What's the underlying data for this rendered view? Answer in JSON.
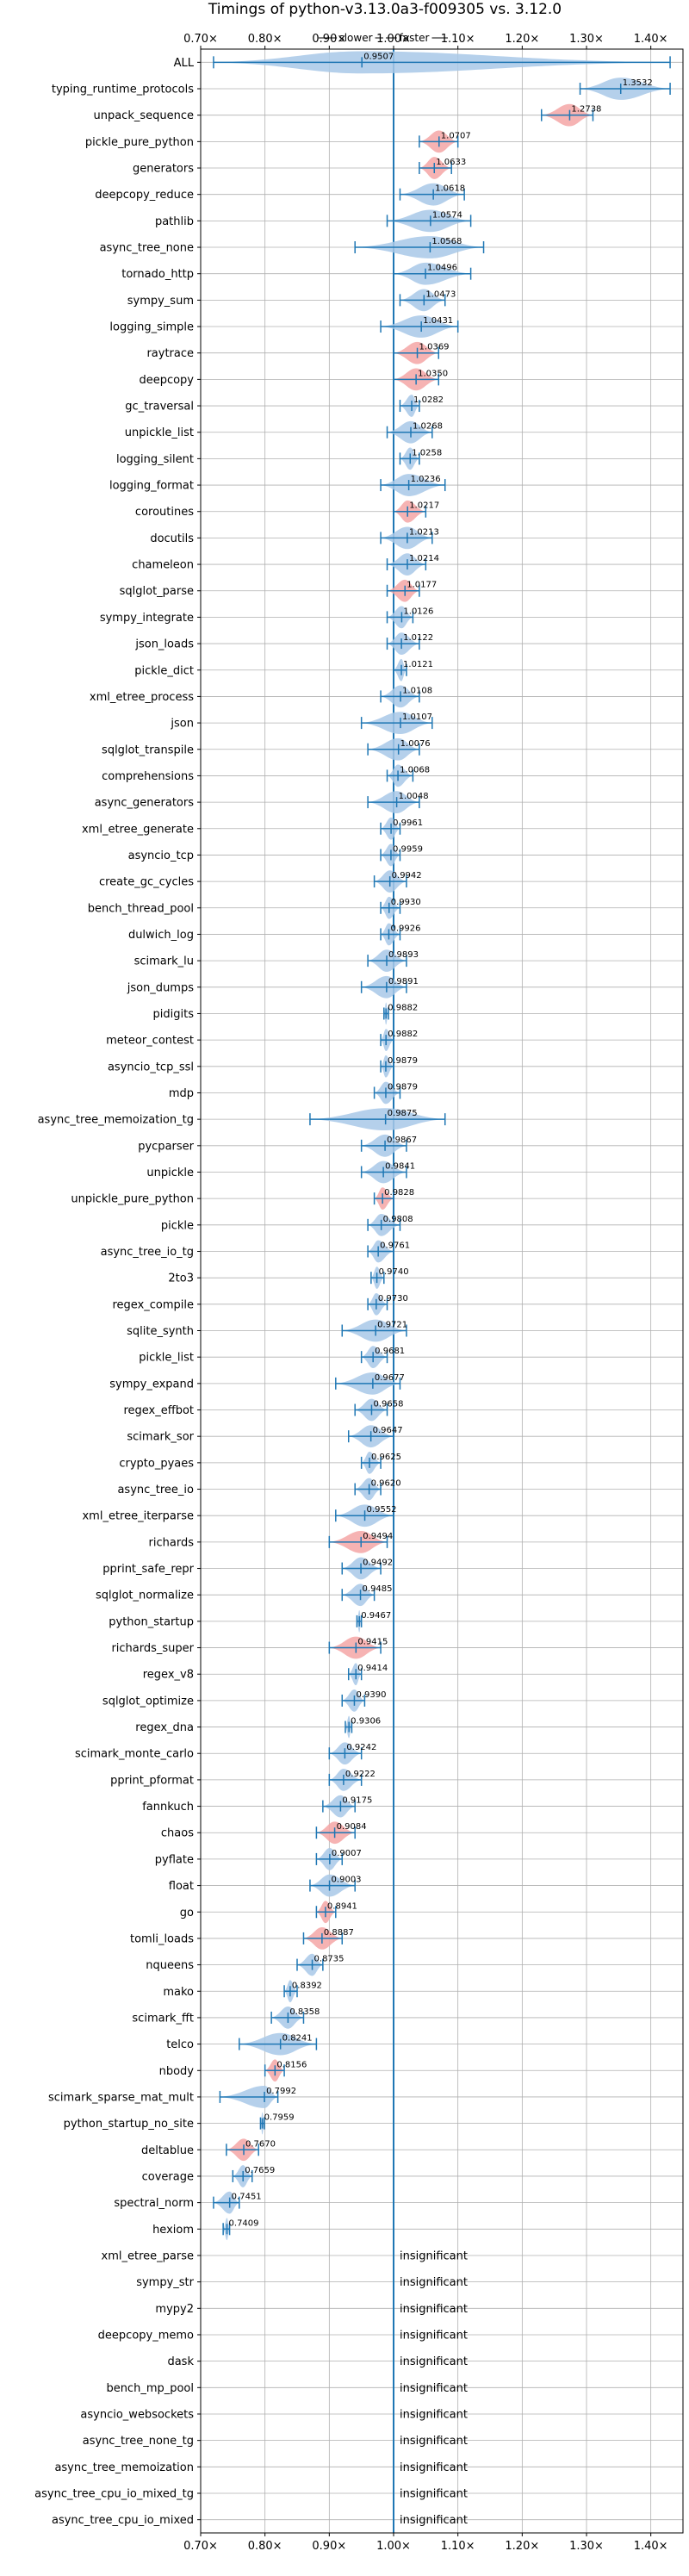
{
  "chart_data": {
    "type": "violin",
    "title": "Timings of python-v3.13.0a3-f009305 vs. 3.12.0",
    "hint_slower": "slower",
    "hint_faster": "faster",
    "xlim": [
      0.7,
      1.45
    ],
    "x_ticks": [
      0.7,
      0.8,
      0.9,
      1.0,
      1.1,
      1.2,
      1.3,
      1.4
    ],
    "x_tick_labels": [
      "0.70×",
      "0.80×",
      "0.90×",
      "1.00×",
      "1.10×",
      "1.20×",
      "1.30×",
      "1.40×"
    ],
    "grid": true,
    "colors": {
      "faster": "#a8c8e8",
      "slower": "#f4a6a6",
      "line": "#1f77b4"
    },
    "insignificant_label": "insignificant",
    "benchmarks": [
      {
        "name": "ALL",
        "value": 0.9507,
        "label": "0.9507",
        "min": 0.72,
        "max": 1.43,
        "slower": false
      },
      {
        "name": "typing_runtime_protocols",
        "value": 1.3532,
        "label": "1.3532",
        "min": 1.29,
        "max": 1.43,
        "slower": false
      },
      {
        "name": "unpack_sequence",
        "value": 1.2738,
        "label": "1.2738",
        "min": 1.23,
        "max": 1.31,
        "slower": true
      },
      {
        "name": "pickle_pure_python",
        "value": 1.0707,
        "label": "1.0707",
        "min": 1.04,
        "max": 1.1,
        "slower": true
      },
      {
        "name": "generators",
        "value": 1.0633,
        "label": "1.0633",
        "min": 1.04,
        "max": 1.09,
        "slower": true
      },
      {
        "name": "deepcopy_reduce",
        "value": 1.0618,
        "label": "1.0618",
        "min": 1.01,
        "max": 1.11,
        "slower": false
      },
      {
        "name": "pathlib",
        "value": 1.0574,
        "label": "1.0574",
        "min": 0.99,
        "max": 1.12,
        "slower": false
      },
      {
        "name": "async_tree_none",
        "value": 1.0568,
        "label": "1.0568",
        "min": 0.94,
        "max": 1.14,
        "slower": false
      },
      {
        "name": "tornado_http",
        "value": 1.0496,
        "label": "1.0496",
        "min": 1.0,
        "max": 1.12,
        "slower": false
      },
      {
        "name": "sympy_sum",
        "value": 1.0473,
        "label": "1.0473",
        "min": 1.01,
        "max": 1.08,
        "slower": false
      },
      {
        "name": "logging_simple",
        "value": 1.0431,
        "label": "1.0431",
        "min": 0.98,
        "max": 1.1,
        "slower": false
      },
      {
        "name": "raytrace",
        "value": 1.0369,
        "label": "1.0369",
        "min": 1.0,
        "max": 1.07,
        "slower": true
      },
      {
        "name": "deepcopy",
        "value": 1.035,
        "label": "1.0350",
        "min": 1.0,
        "max": 1.07,
        "slower": true
      },
      {
        "name": "gc_traversal",
        "value": 1.0282,
        "label": "1.0282",
        "min": 1.01,
        "max": 1.04,
        "slower": false
      },
      {
        "name": "unpickle_list",
        "value": 1.0268,
        "label": "1.0268",
        "min": 0.99,
        "max": 1.06,
        "slower": false
      },
      {
        "name": "logging_silent",
        "value": 1.0258,
        "label": "1.0258",
        "min": 1.01,
        "max": 1.04,
        "slower": false
      },
      {
        "name": "logging_format",
        "value": 1.0236,
        "label": "1.0236",
        "min": 0.98,
        "max": 1.08,
        "slower": false
      },
      {
        "name": "coroutines",
        "value": 1.0217,
        "label": "1.0217",
        "min": 1.0,
        "max": 1.05,
        "slower": true
      },
      {
        "name": "docutils",
        "value": 1.0213,
        "label": "1.0213",
        "min": 0.98,
        "max": 1.06,
        "slower": false
      },
      {
        "name": "chameleon",
        "value": 1.0214,
        "label": "1.0214",
        "min": 0.99,
        "max": 1.05,
        "slower": false
      },
      {
        "name": "sqlglot_parse",
        "value": 1.0177,
        "label": "1.0177",
        "min": 0.99,
        "max": 1.04,
        "slower": true
      },
      {
        "name": "sympy_integrate",
        "value": 1.0126,
        "label": "1.0126",
        "min": 0.99,
        "max": 1.03,
        "slower": false
      },
      {
        "name": "json_loads",
        "value": 1.0122,
        "label": "1.0122",
        "min": 0.99,
        "max": 1.04,
        "slower": false
      },
      {
        "name": "pickle_dict",
        "value": 1.0121,
        "label": "1.0121",
        "min": 1.0,
        "max": 1.02,
        "slower": false
      },
      {
        "name": "xml_etree_process",
        "value": 1.0108,
        "label": "1.0108",
        "min": 0.98,
        "max": 1.04,
        "slower": false
      },
      {
        "name": "json",
        "value": 1.0107,
        "label": "1.0107",
        "min": 0.95,
        "max": 1.06,
        "slower": false
      },
      {
        "name": "sqlglot_transpile",
        "value": 1.0076,
        "label": "1.0076",
        "min": 0.96,
        "max": 1.04,
        "slower": false
      },
      {
        "name": "comprehensions",
        "value": 1.0068,
        "label": "1.0068",
        "min": 0.99,
        "max": 1.03,
        "slower": false
      },
      {
        "name": "async_generators",
        "value": 1.0048,
        "label": "1.0048",
        "min": 0.96,
        "max": 1.04,
        "slower": false
      },
      {
        "name": "xml_etree_generate",
        "value": 0.9961,
        "label": "0.9961",
        "min": 0.98,
        "max": 1.01,
        "slower": false
      },
      {
        "name": "asyncio_tcp",
        "value": 0.9959,
        "label": "0.9959",
        "min": 0.98,
        "max": 1.01,
        "slower": false
      },
      {
        "name": "create_gc_cycles",
        "value": 0.9942,
        "label": "0.9942",
        "min": 0.97,
        "max": 1.02,
        "slower": false
      },
      {
        "name": "bench_thread_pool",
        "value": 0.993,
        "label": "0.9930",
        "min": 0.98,
        "max": 1.01,
        "slower": false
      },
      {
        "name": "dulwich_log",
        "value": 0.9926,
        "label": "0.9926",
        "min": 0.98,
        "max": 1.01,
        "slower": false
      },
      {
        "name": "scimark_lu",
        "value": 0.9893,
        "label": "0.9893",
        "min": 0.96,
        "max": 1.02,
        "slower": false
      },
      {
        "name": "json_dumps",
        "value": 0.9891,
        "label": "0.9891",
        "min": 0.95,
        "max": 1.02,
        "slower": false
      },
      {
        "name": "pidigits",
        "value": 0.9882,
        "label": "0.9882",
        "min": 0.985,
        "max": 0.992,
        "slower": false
      },
      {
        "name": "meteor_contest",
        "value": 0.9882,
        "label": "0.9882",
        "min": 0.98,
        "max": 1.0,
        "slower": false
      },
      {
        "name": "asyncio_tcp_ssl",
        "value": 0.9879,
        "label": "0.9879",
        "min": 0.98,
        "max": 1.0,
        "slower": false
      },
      {
        "name": "mdp",
        "value": 0.9879,
        "label": "0.9879",
        "min": 0.97,
        "max": 1.01,
        "slower": false
      },
      {
        "name": "async_tree_memoization_tg",
        "value": 0.9875,
        "label": "0.9875",
        "min": 0.87,
        "max": 1.08,
        "slower": false
      },
      {
        "name": "pycparser",
        "value": 0.9867,
        "label": "0.9867",
        "min": 0.95,
        "max": 1.02,
        "slower": false
      },
      {
        "name": "unpickle",
        "value": 0.9841,
        "label": "0.9841",
        "min": 0.95,
        "max": 1.02,
        "slower": false
      },
      {
        "name": "unpickle_pure_python",
        "value": 0.9828,
        "label": "0.9828",
        "min": 0.97,
        "max": 1.0,
        "slower": true
      },
      {
        "name": "pickle",
        "value": 0.9808,
        "label": "0.9808",
        "min": 0.96,
        "max": 1.01,
        "slower": false
      },
      {
        "name": "async_tree_io_tg",
        "value": 0.9761,
        "label": "0.9761",
        "min": 0.96,
        "max": 1.0,
        "slower": false
      },
      {
        "name": "2to3",
        "value": 0.974,
        "label": "0.9740",
        "min": 0.965,
        "max": 0.985,
        "slower": false
      },
      {
        "name": "regex_compile",
        "value": 0.973,
        "label": "0.9730",
        "min": 0.96,
        "max": 0.99,
        "slower": false
      },
      {
        "name": "sqlite_synth",
        "value": 0.9721,
        "label": "0.9721",
        "min": 0.92,
        "max": 1.02,
        "slower": false
      },
      {
        "name": "pickle_list",
        "value": 0.9681,
        "label": "0.9681",
        "min": 0.95,
        "max": 0.99,
        "slower": false
      },
      {
        "name": "sympy_expand",
        "value": 0.9677,
        "label": "0.9677",
        "min": 0.91,
        "max": 1.01,
        "slower": false
      },
      {
        "name": "regex_effbot",
        "value": 0.9658,
        "label": "0.9658",
        "min": 0.94,
        "max": 0.99,
        "slower": false
      },
      {
        "name": "scimark_sor",
        "value": 0.9647,
        "label": "0.9647",
        "min": 0.93,
        "max": 1.0,
        "slower": false
      },
      {
        "name": "crypto_pyaes",
        "value": 0.9625,
        "label": "0.9625",
        "min": 0.95,
        "max": 0.98,
        "slower": false
      },
      {
        "name": "async_tree_io",
        "value": 0.962,
        "label": "0.9620",
        "min": 0.94,
        "max": 0.98,
        "slower": false
      },
      {
        "name": "xml_etree_iterparse",
        "value": 0.9552,
        "label": "0.9552",
        "min": 0.91,
        "max": 1.0,
        "slower": false
      },
      {
        "name": "richards",
        "value": 0.9494,
        "label": "0.9494",
        "min": 0.9,
        "max": 0.99,
        "slower": true
      },
      {
        "name": "pprint_safe_repr",
        "value": 0.9492,
        "label": "0.9492",
        "min": 0.92,
        "max": 0.98,
        "slower": false
      },
      {
        "name": "sqlglot_normalize",
        "value": 0.9485,
        "label": "0.9485",
        "min": 0.92,
        "max": 0.97,
        "slower": false
      },
      {
        "name": "python_startup",
        "value": 0.9467,
        "label": "0.9467",
        "min": 0.943,
        "max": 0.95,
        "slower": false
      },
      {
        "name": "richards_super",
        "value": 0.9415,
        "label": "0.9415",
        "min": 0.9,
        "max": 0.98,
        "slower": true
      },
      {
        "name": "regex_v8",
        "value": 0.9414,
        "label": "0.9414",
        "min": 0.93,
        "max": 0.95,
        "slower": false
      },
      {
        "name": "sqlglot_optimize",
        "value": 0.939,
        "label": "0.9390",
        "min": 0.92,
        "max": 0.955,
        "slower": false
      },
      {
        "name": "regex_dna",
        "value": 0.9306,
        "label": "0.9306",
        "min": 0.925,
        "max": 0.935,
        "slower": false
      },
      {
        "name": "scimark_monte_carlo",
        "value": 0.9242,
        "label": "0.9242",
        "min": 0.9,
        "max": 0.95,
        "slower": false
      },
      {
        "name": "pprint_pformat",
        "value": 0.9222,
        "label": "0.9222",
        "min": 0.9,
        "max": 0.95,
        "slower": false
      },
      {
        "name": "fannkuch",
        "value": 0.9175,
        "label": "0.9175",
        "min": 0.89,
        "max": 0.94,
        "slower": false
      },
      {
        "name": "chaos",
        "value": 0.9084,
        "label": "0.9084",
        "min": 0.88,
        "max": 0.94,
        "slower": true
      },
      {
        "name": "pyflate",
        "value": 0.9007,
        "label": "0.9007",
        "min": 0.88,
        "max": 0.92,
        "slower": false
      },
      {
        "name": "float",
        "value": 0.9003,
        "label": "0.9003",
        "min": 0.87,
        "max": 0.94,
        "slower": false
      },
      {
        "name": "go",
        "value": 0.8941,
        "label": "0.8941",
        "min": 0.88,
        "max": 0.91,
        "slower": true
      },
      {
        "name": "tomli_loads",
        "value": 0.8887,
        "label": "0.8887",
        "min": 0.86,
        "max": 0.92,
        "slower": true
      },
      {
        "name": "nqueens",
        "value": 0.8735,
        "label": "0.8735",
        "min": 0.85,
        "max": 0.89,
        "slower": false
      },
      {
        "name": "mako",
        "value": 0.8392,
        "label": "0.8392",
        "min": 0.83,
        "max": 0.85,
        "slower": false
      },
      {
        "name": "scimark_fft",
        "value": 0.8358,
        "label": "0.8358",
        "min": 0.81,
        "max": 0.86,
        "slower": false
      },
      {
        "name": "telco",
        "value": 0.8241,
        "label": "0.8241",
        "min": 0.76,
        "max": 0.88,
        "slower": false
      },
      {
        "name": "nbody",
        "value": 0.8156,
        "label": "0.8156",
        "min": 0.8,
        "max": 0.83,
        "slower": true
      },
      {
        "name": "scimark_sparse_mat_mult",
        "value": 0.7992,
        "label": "0.7992",
        "min": 0.73,
        "max": 0.82,
        "slower": false
      },
      {
        "name": "python_startup_no_site",
        "value": 0.7959,
        "label": "0.7959",
        "min": 0.793,
        "max": 0.799,
        "slower": false
      },
      {
        "name": "deltablue",
        "value": 0.767,
        "label": "0.7670",
        "min": 0.74,
        "max": 0.79,
        "slower": true
      },
      {
        "name": "coverage",
        "value": 0.7659,
        "label": "0.7659",
        "min": 0.75,
        "max": 0.78,
        "slower": false
      },
      {
        "name": "spectral_norm",
        "value": 0.7451,
        "label": "0.7451",
        "min": 0.72,
        "max": 0.76,
        "slower": false
      },
      {
        "name": "hexiom",
        "value": 0.7409,
        "label": "0.7409",
        "min": 0.735,
        "max": 0.745,
        "slower": false
      },
      {
        "name": "xml_etree_parse",
        "insignificant": true
      },
      {
        "name": "sympy_str",
        "insignificant": true
      },
      {
        "name": "mypy2",
        "insignificant": true
      },
      {
        "name": "deepcopy_memo",
        "insignificant": true
      },
      {
        "name": "dask",
        "insignificant": true
      },
      {
        "name": "bench_mp_pool",
        "insignificant": true
      },
      {
        "name": "asyncio_websockets",
        "insignificant": true
      },
      {
        "name": "async_tree_none_tg",
        "insignificant": true
      },
      {
        "name": "async_tree_memoization",
        "insignificant": true
      },
      {
        "name": "async_tree_cpu_io_mixed_tg",
        "insignificant": true
      },
      {
        "name": "async_tree_cpu_io_mixed",
        "insignificant": true
      }
    ]
  }
}
